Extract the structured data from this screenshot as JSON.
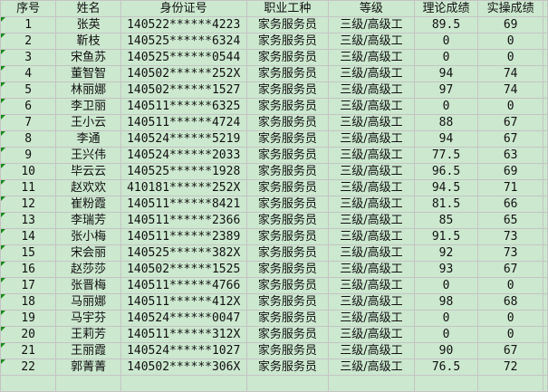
{
  "headers": [
    "序号",
    "姓名",
    "身份证号",
    "职业工种",
    "等级",
    "理论成绩",
    "实操成绩"
  ],
  "rows": [
    [
      "1",
      "张英",
      "140522******4223",
      "家务服务员",
      "三级/高级工",
      "89.5",
      "69"
    ],
    [
      "2",
      "靳枝",
      "140525******6324",
      "家务服务员",
      "三级/高级工",
      "0",
      "0"
    ],
    [
      "3",
      "宋鱼苏",
      "140525******0544",
      "家务服务员",
      "三级/高级工",
      "0",
      "0"
    ],
    [
      "4",
      "董智智",
      "140502******252X",
      "家务服务员",
      "三级/高级工",
      "94",
      "74"
    ],
    [
      "5",
      "林丽娜",
      "140502******1527",
      "家务服务员",
      "三级/高级工",
      "97",
      "74"
    ],
    [
      "6",
      "李卫丽",
      "140511******6325",
      "家务服务员",
      "三级/高级工",
      "0",
      "0"
    ],
    [
      "7",
      "王小云",
      "140511******4724",
      "家务服务员",
      "三级/高级工",
      "88",
      "67"
    ],
    [
      "8",
      "李通",
      "140524******5219",
      "家务服务员",
      "三级/高级工",
      "94",
      "67"
    ],
    [
      "9",
      "王兴伟",
      "140524******2033",
      "家务服务员",
      "三级/高级工",
      "77.5",
      "63"
    ],
    [
      "10",
      "毕云云",
      "140525******1928",
      "家务服务员",
      "三级/高级工",
      "96.5",
      "69"
    ],
    [
      "11",
      "赵欢欢",
      "410181******252X",
      "家务服务员",
      "三级/高级工",
      "94.5",
      "71"
    ],
    [
      "12",
      "崔粉霞",
      "140511******8421",
      "家务服务员",
      "三级/高级工",
      "81.5",
      "66"
    ],
    [
      "13",
      "李瑞芳",
      "140511******2366",
      "家务服务员",
      "三级/高级工",
      "85",
      "65"
    ],
    [
      "14",
      "张小梅",
      "140511******2389",
      "家务服务员",
      "三级/高级工",
      "91.5",
      "73"
    ],
    [
      "15",
      "宋会丽",
      "140525******382X",
      "家务服务员",
      "三级/高级工",
      "92",
      "73"
    ],
    [
      "16",
      "赵莎莎",
      "140502******1525",
      "家务服务员",
      "三级/高级工",
      "93",
      "67"
    ],
    [
      "17",
      "张晋梅",
      "140511******4766",
      "家务服务员",
      "三级/高级工",
      "0",
      "0"
    ],
    [
      "18",
      "马丽娜",
      "140511******412X",
      "家务服务员",
      "三级/高级工",
      "98",
      "68"
    ],
    [
      "19",
      "马宇芬",
      "140524******0047",
      "家务服务员",
      "三级/高级工",
      "0",
      "0"
    ],
    [
      "20",
      "王莉芳",
      "140511******312X",
      "家务服务员",
      "三级/高级工",
      "0",
      "0"
    ],
    [
      "21",
      "王丽霞",
      "140524******1027",
      "家务服务员",
      "三级/高级工",
      "90",
      "67"
    ],
    [
      "22",
      "郭菁菁",
      "140502******306X",
      "家务服务员",
      "三级/高级工",
      "76.5",
      "72"
    ]
  ],
  "colors": {
    "background": "#cce8cf",
    "grid": "#c4c4c4",
    "error_marker": "#1a8a1a"
  }
}
